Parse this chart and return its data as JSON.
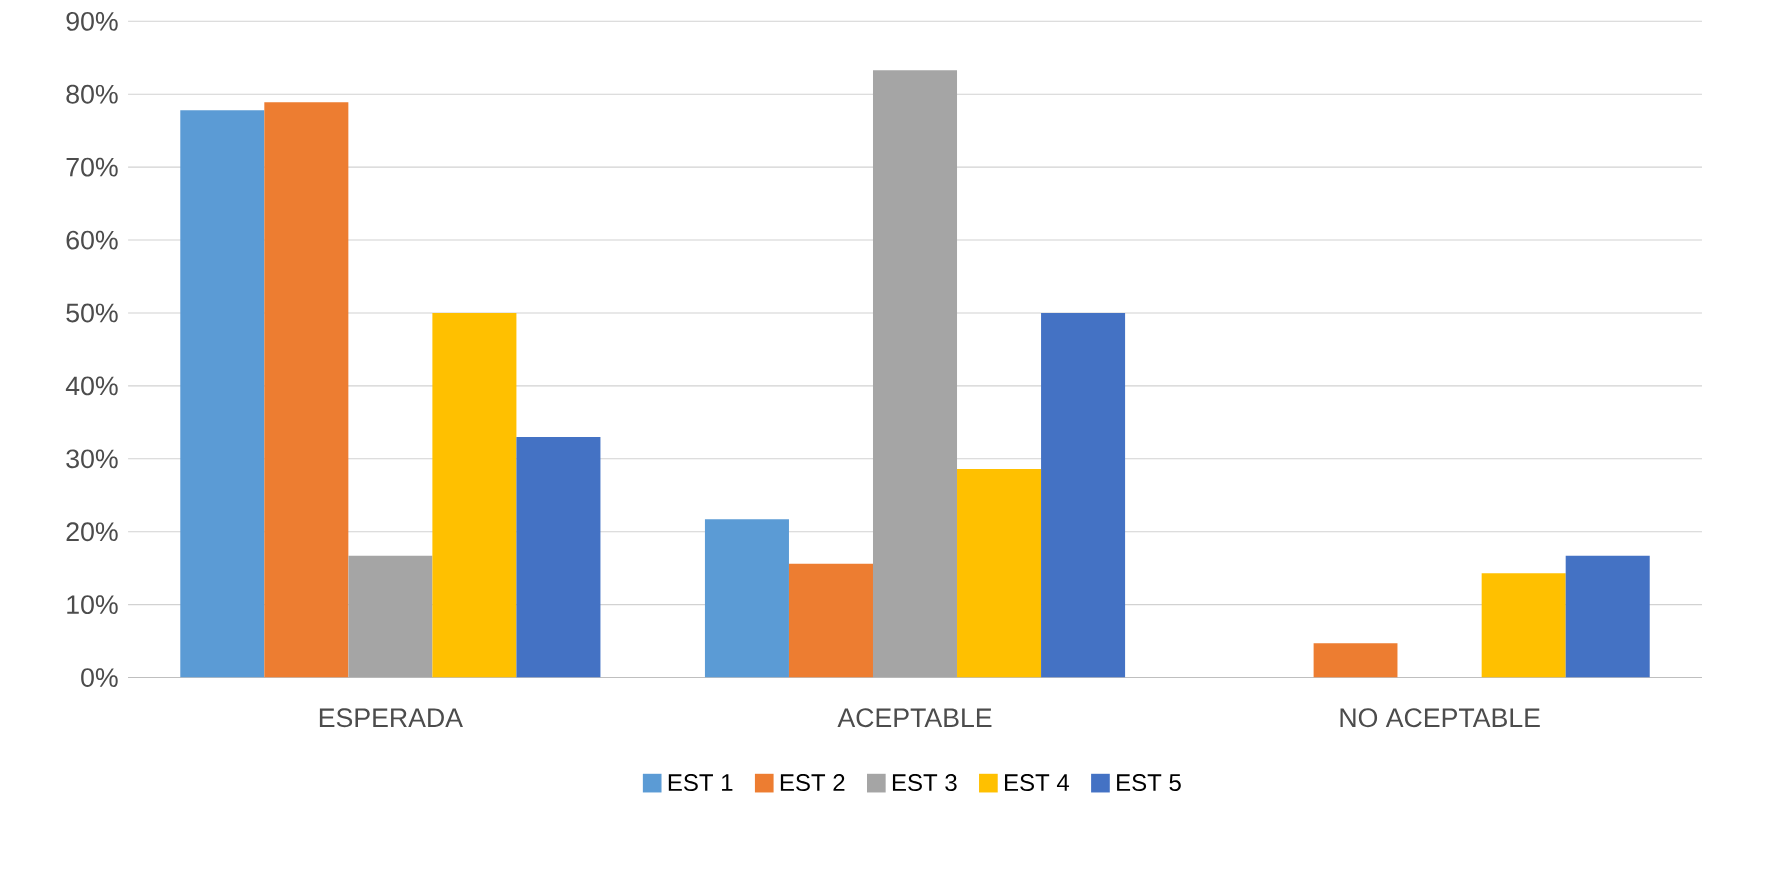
{
  "chart_data": {
    "type": "bar",
    "categories": [
      "ESPERADA",
      "ACEPTABLE",
      "NO ACEPTABLE"
    ],
    "series": [
      {
        "name": "EST 1",
        "color": "#5b9bd5",
        "values": [
          77.8,
          21.7,
          0
        ]
      },
      {
        "name": "EST 2",
        "color": "#ed7d31",
        "values": [
          78.9,
          15.6,
          4.7
        ]
      },
      {
        "name": "EST 3",
        "color": "#a5a5a5",
        "values": [
          16.7,
          83.3,
          0
        ]
      },
      {
        "name": "EST 4",
        "color": "#ffc000",
        "values": [
          50,
          28.6,
          14.3
        ]
      },
      {
        "name": "EST 5",
        "color": "#4472c4",
        "values": [
          33,
          50,
          16.7
        ]
      }
    ],
    "ylim": [
      0,
      90
    ],
    "yticks": [
      {
        "value": 0,
        "label": "0%"
      },
      {
        "value": 10,
        "label": "10%"
      },
      {
        "value": 20,
        "label": "20%"
      },
      {
        "value": 30,
        "label": "30%"
      },
      {
        "value": 40,
        "label": "40%"
      },
      {
        "value": 50,
        "label": "50%"
      },
      {
        "value": 60,
        "label": "60%"
      },
      {
        "value": 70,
        "label": "70%"
      },
      {
        "value": 80,
        "label": "80%"
      },
      {
        "value": 90,
        "label": "90%"
      }
    ],
    "grid": "y",
    "legend": "bottom"
  }
}
